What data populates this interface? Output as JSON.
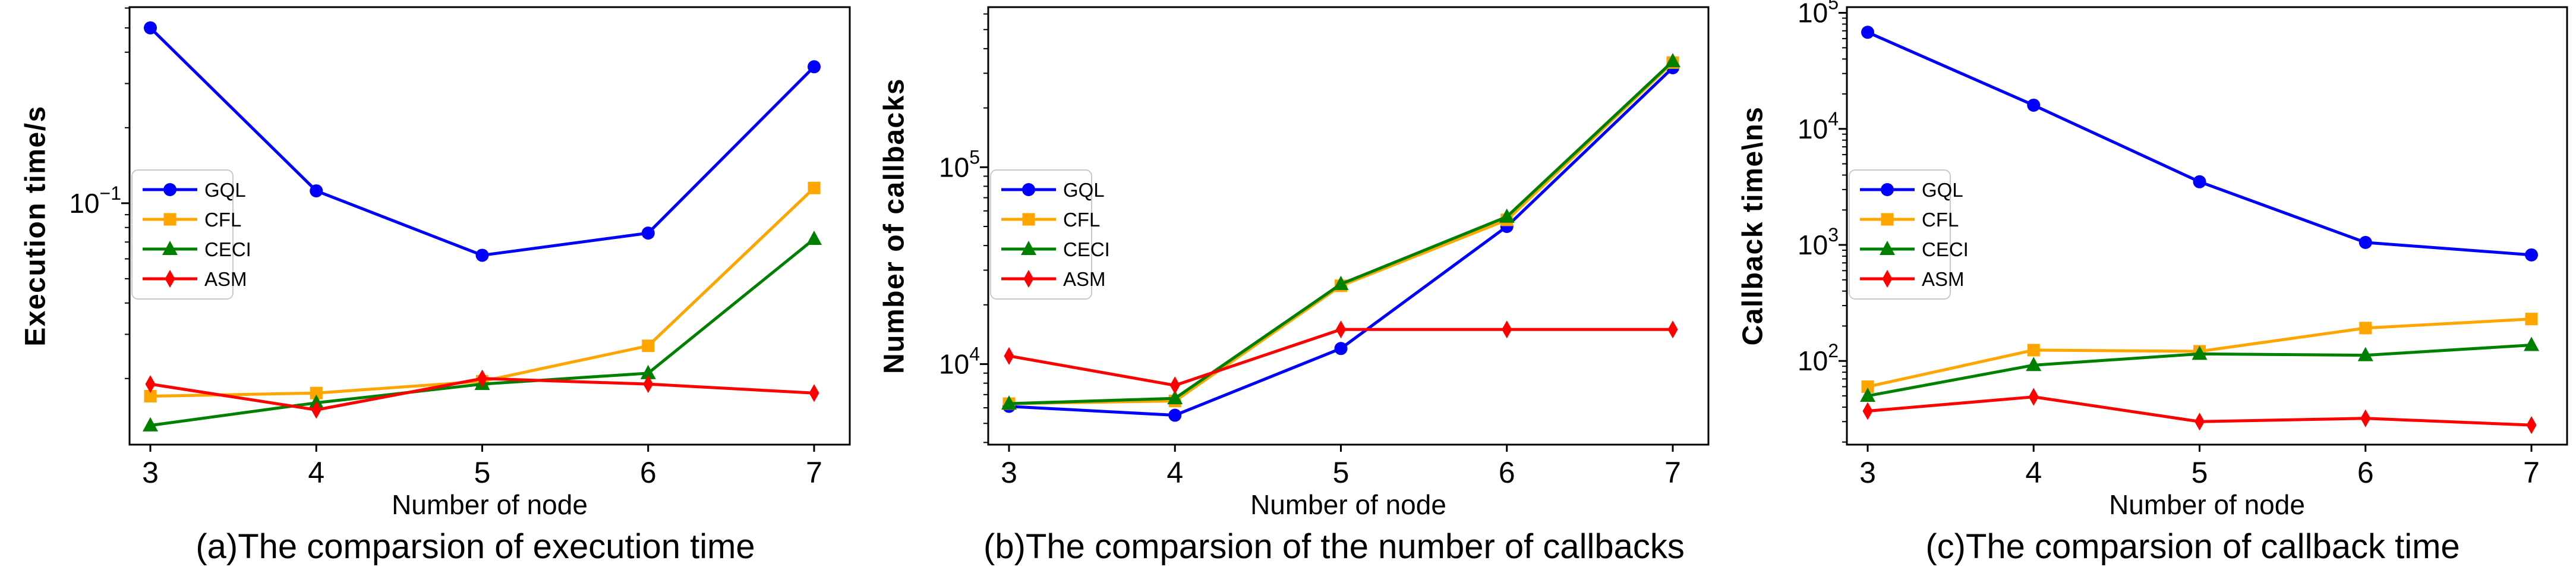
{
  "figure": {
    "background_color": "#ffffff",
    "axis_color": "#000000",
    "legend_border_color": "#c9c9c9",
    "legend_background": "#ffffff"
  },
  "chart_data": [
    {
      "type": "line",
      "caption": "(a)The comparsion of execution time",
      "xlabel": "Number of node",
      "ylabel": "Execution time/s",
      "yscale": "log",
      "ylim": [
        0.0109,
        0.605
      ],
      "x": [
        3,
        4,
        5,
        6,
        7
      ],
      "xtick_labels": [
        "3",
        "4",
        "5",
        "6",
        "7"
      ],
      "ytick_labeled_exponents": [
        -1
      ],
      "grid": false,
      "legend_position": "upper-left",
      "series": [
        {
          "name": "GQL",
          "color": "#0000ff",
          "marker": "circle",
          "values": [
            0.5,
            0.112,
            0.062,
            0.076,
            0.35
          ]
        },
        {
          "name": "CFL",
          "color": "#ffa500",
          "marker": "square",
          "values": [
            0.017,
            0.0175,
            0.0195,
            0.027,
            0.115
          ]
        },
        {
          "name": "CECI",
          "color": "#008000",
          "marker": "triangle",
          "values": [
            0.013,
            0.016,
            0.019,
            0.021,
            0.072
          ]
        },
        {
          "name": "ASM",
          "color": "#ff0000",
          "marker": "diamond",
          "values": [
            0.019,
            0.015,
            0.02,
            0.019,
            0.0175
          ]
        }
      ]
    },
    {
      "type": "line",
      "caption": "(b)The comparsion of the number of callbacks",
      "xlabel": "Number of node",
      "ylabel": "Number of callbacks",
      "yscale": "log",
      "ylim": [
        3900,
        650000
      ],
      "x": [
        3,
        4,
        5,
        6,
        7
      ],
      "xtick_labels": [
        "3",
        "4",
        "5",
        "6",
        "7"
      ],
      "ytick_labeled_exponents": [
        4,
        5
      ],
      "grid": false,
      "legend_position": "upper-left",
      "series": [
        {
          "name": "GQL",
          "color": "#0000ff",
          "marker": "circle",
          "values": [
            6100,
            5500,
            12000,
            50000,
            320000
          ]
        },
        {
          "name": "CFL",
          "color": "#ffa500",
          "marker": "square",
          "values": [
            6300,
            6500,
            25000,
            54000,
            340000
          ]
        },
        {
          "name": "CECI",
          "color": "#008000",
          "marker": "triangle",
          "values": [
            6300,
            6700,
            25500,
            56000,
            345000
          ]
        },
        {
          "name": "ASM",
          "color": "#ff0000",
          "marker": "diamond",
          "values": [
            11000,
            7800,
            15000,
            15000,
            15000
          ]
        }
      ]
    },
    {
      "type": "line",
      "caption": "(c)The comparsion of callback time",
      "xlabel": "Number of node",
      "ylabel": "Callback time\\ns",
      "yscale": "log",
      "ylim": [
        19,
        112000
      ],
      "x": [
        3,
        4,
        5,
        6,
        7
      ],
      "xtick_labels": [
        "3",
        "4",
        "5",
        "6",
        "7"
      ],
      "ytick_labeled_exponents": [
        2,
        3,
        4,
        5
      ],
      "grid": false,
      "legend_position": "upper-left",
      "series": [
        {
          "name": "GQL",
          "color": "#0000ff",
          "marker": "circle",
          "values": [
            68000,
            16000,
            3500,
            1050,
            820
          ]
        },
        {
          "name": "CFL",
          "color": "#ffa500",
          "marker": "square",
          "values": [
            60,
            124,
            121,
            192,
            230
          ]
        },
        {
          "name": "CECI",
          "color": "#008000",
          "marker": "triangle",
          "values": [
            50,
            92,
            115,
            112,
            137
          ]
        },
        {
          "name": "ASM",
          "color": "#ff0000",
          "marker": "diamond",
          "values": [
            37,
            49,
            30,
            32,
            28
          ]
        }
      ]
    }
  ]
}
